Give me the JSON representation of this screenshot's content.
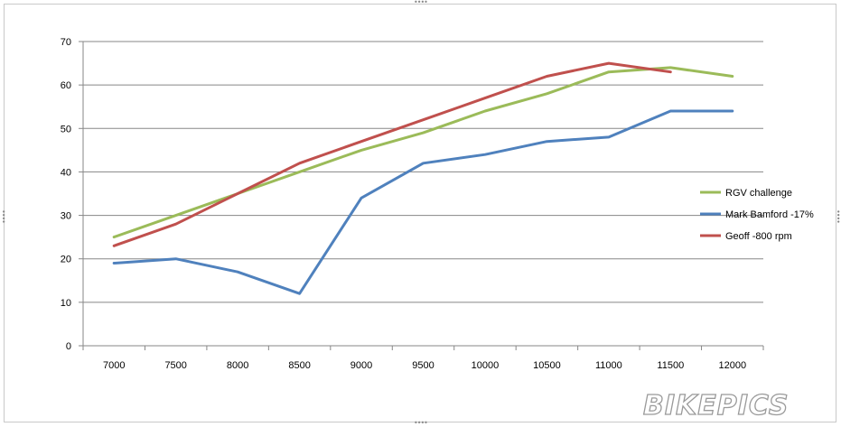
{
  "chart_data": {
    "type": "line",
    "title": "",
    "xlabel": "",
    "ylabel": "",
    "categories": [
      "7000",
      "7500",
      "8000",
      "8500",
      "9000",
      "9500",
      "10000",
      "10500",
      "11000",
      "11500",
      "12000"
    ],
    "y_ticks": [
      "0",
      "10",
      "20",
      "30",
      "40",
      "50",
      "60",
      "70"
    ],
    "ylim": [
      0,
      70
    ],
    "grid": "horizontal",
    "legend_position": "right",
    "series": [
      {
        "name": "RGV challenge",
        "color": "#9bbb59",
        "values": [
          25,
          30,
          35,
          40,
          45,
          49,
          54,
          58,
          63,
          64,
          62
        ]
      },
      {
        "name": "Mark Bamford  -17%",
        "color": "#4f81bd",
        "values": [
          19,
          20,
          17,
          12,
          34,
          42,
          44,
          47,
          48,
          54,
          54
        ]
      },
      {
        "name": "Geoff -800 rpm",
        "color": "#c0504d",
        "values": [
          23,
          28,
          35,
          42,
          47,
          52,
          57,
          62,
          65,
          63,
          null
        ]
      }
    ]
  },
  "watermark": {
    "text": "BIKEPICS"
  }
}
